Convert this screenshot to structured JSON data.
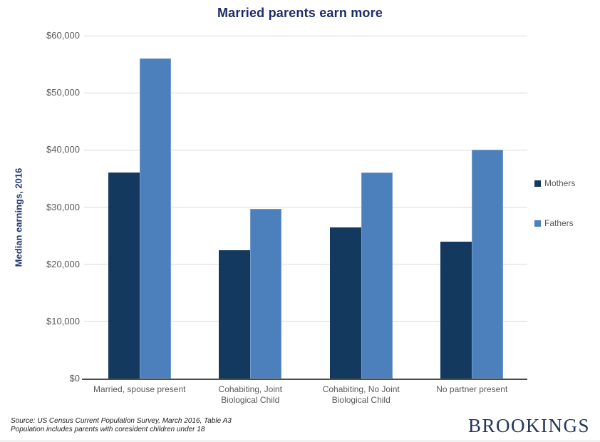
{
  "chart_data": {
    "type": "bar",
    "title": "Married parents earn more",
    "xlabel": "",
    "ylabel": "Median earnings, 2016",
    "categories": [
      "Married, spouse present",
      "Cohabiting, Joint\nBiological Child",
      "Cohabiting, No Joint\nBiological Child",
      "No partner present"
    ],
    "series": [
      {
        "name": "Mothers",
        "color": "#14395f",
        "values": [
          36000,
          22400,
          26400,
          24000
        ]
      },
      {
        "name": "Fathers",
        "color": "#4c80bc",
        "values": [
          56000,
          29700,
          36000,
          40000
        ]
      }
    ],
    "ylim": [
      0,
      60000
    ],
    "ytick_step": 10000,
    "ytick_labels": [
      "$0",
      "$10,000",
      "$20,000",
      "$30,000",
      "$40,000",
      "$50,000",
      "$60,000"
    ],
    "grid": true,
    "legend_position": "right-middle"
  },
  "colors": {
    "title_navy": "#1b2c6b",
    "axis_label_navy": "#243a70",
    "tick_text_gray": "#595959",
    "gridline_gray": "#d9d9d9",
    "axis_line_gray": "#4d4d4d",
    "brand_navy": "#233659"
  },
  "footer": {
    "source_line1": "Source: US Census Current Population Survey, March 2016, Table A3",
    "source_line2": "Population includes parents with coresident children under 18",
    "brand": "BROOKINGS"
  }
}
